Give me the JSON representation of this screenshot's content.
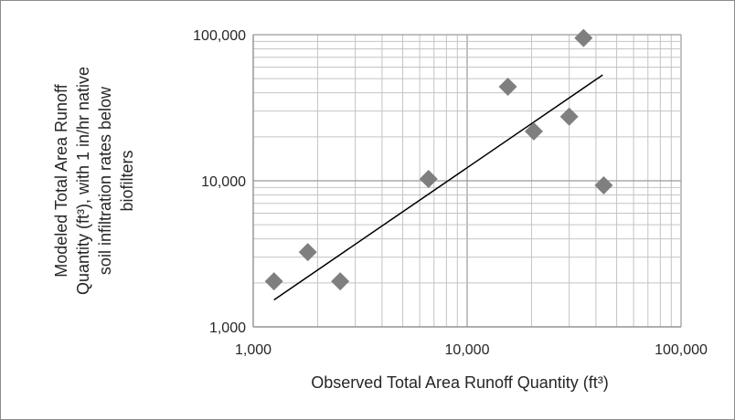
{
  "chart_data": {
    "type": "scatter",
    "xlabel": "Observed Total Area Runoff Quantity (ft³)",
    "ylabel_lines": [
      "Modeled Total Area Runoff",
      "Quantity (ft³), with 1 in/hr native",
      "soil infiltration rates below",
      "biofilters"
    ],
    "x_scale": "log",
    "y_scale": "log",
    "xlim": [
      1000,
      100000
    ],
    "ylim": [
      1000,
      100000
    ],
    "x_ticks": [
      1000,
      10000,
      100000
    ],
    "x_tick_labels": [
      "1,000",
      "10,000",
      "100,000"
    ],
    "y_ticks": [
      1000,
      10000,
      100000
    ],
    "y_tick_labels": [
      "1,000",
      "10,000",
      "100,000"
    ],
    "grid": true,
    "legend": "none",
    "marker": "diamond",
    "marker_color": "#7f7f7f",
    "line_color": "#000000",
    "points": [
      {
        "x": 1250,
        "y": 2050
      },
      {
        "x": 1800,
        "y": 3250
      },
      {
        "x": 2550,
        "y": 2050
      },
      {
        "x": 6600,
        "y": 10300
      },
      {
        "x": 15500,
        "y": 44000
      },
      {
        "x": 20500,
        "y": 21800
      },
      {
        "x": 30000,
        "y": 27500
      },
      {
        "x": 35000,
        "y": 95000
      },
      {
        "x": 43500,
        "y": 9300
      }
    ],
    "trendline": [
      {
        "x": 1250,
        "y": 1530
      },
      {
        "x": 43000,
        "y": 53000
      }
    ]
  }
}
